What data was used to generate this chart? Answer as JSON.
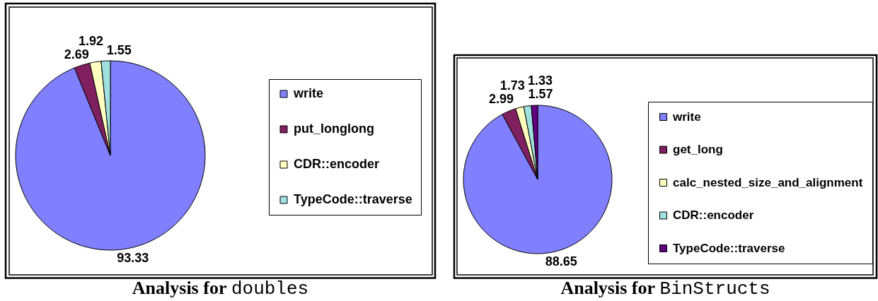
{
  "chart_data": [
    {
      "type": "pie",
      "title": "Analysis for doubles",
      "categories": [
        "write",
        "put_longlong",
        "CDR::encoder",
        "TypeCode::traverse"
      ],
      "values": [
        93.33,
        2.69,
        1.92,
        1.55
      ],
      "colors": [
        "#8080ff",
        "#802060",
        "#ffffc0",
        "#a0e0e0"
      ],
      "data_labels": true,
      "legend": "right"
    },
    {
      "type": "pie",
      "title": "Analysis for BinStructs",
      "categories": [
        "write",
        "get_long",
        "calc_nested_size_and_alignment",
        "CDR::encoder",
        "TypeCode::traverse"
      ],
      "values": [
        88.65,
        2.99,
        1.73,
        1.57,
        1.33
      ],
      "colors": [
        "#8080ff",
        "#802060",
        "#ffffc0",
        "#a0e0e0",
        "#600080"
      ],
      "data_labels": true,
      "legend": "right"
    }
  ]
}
